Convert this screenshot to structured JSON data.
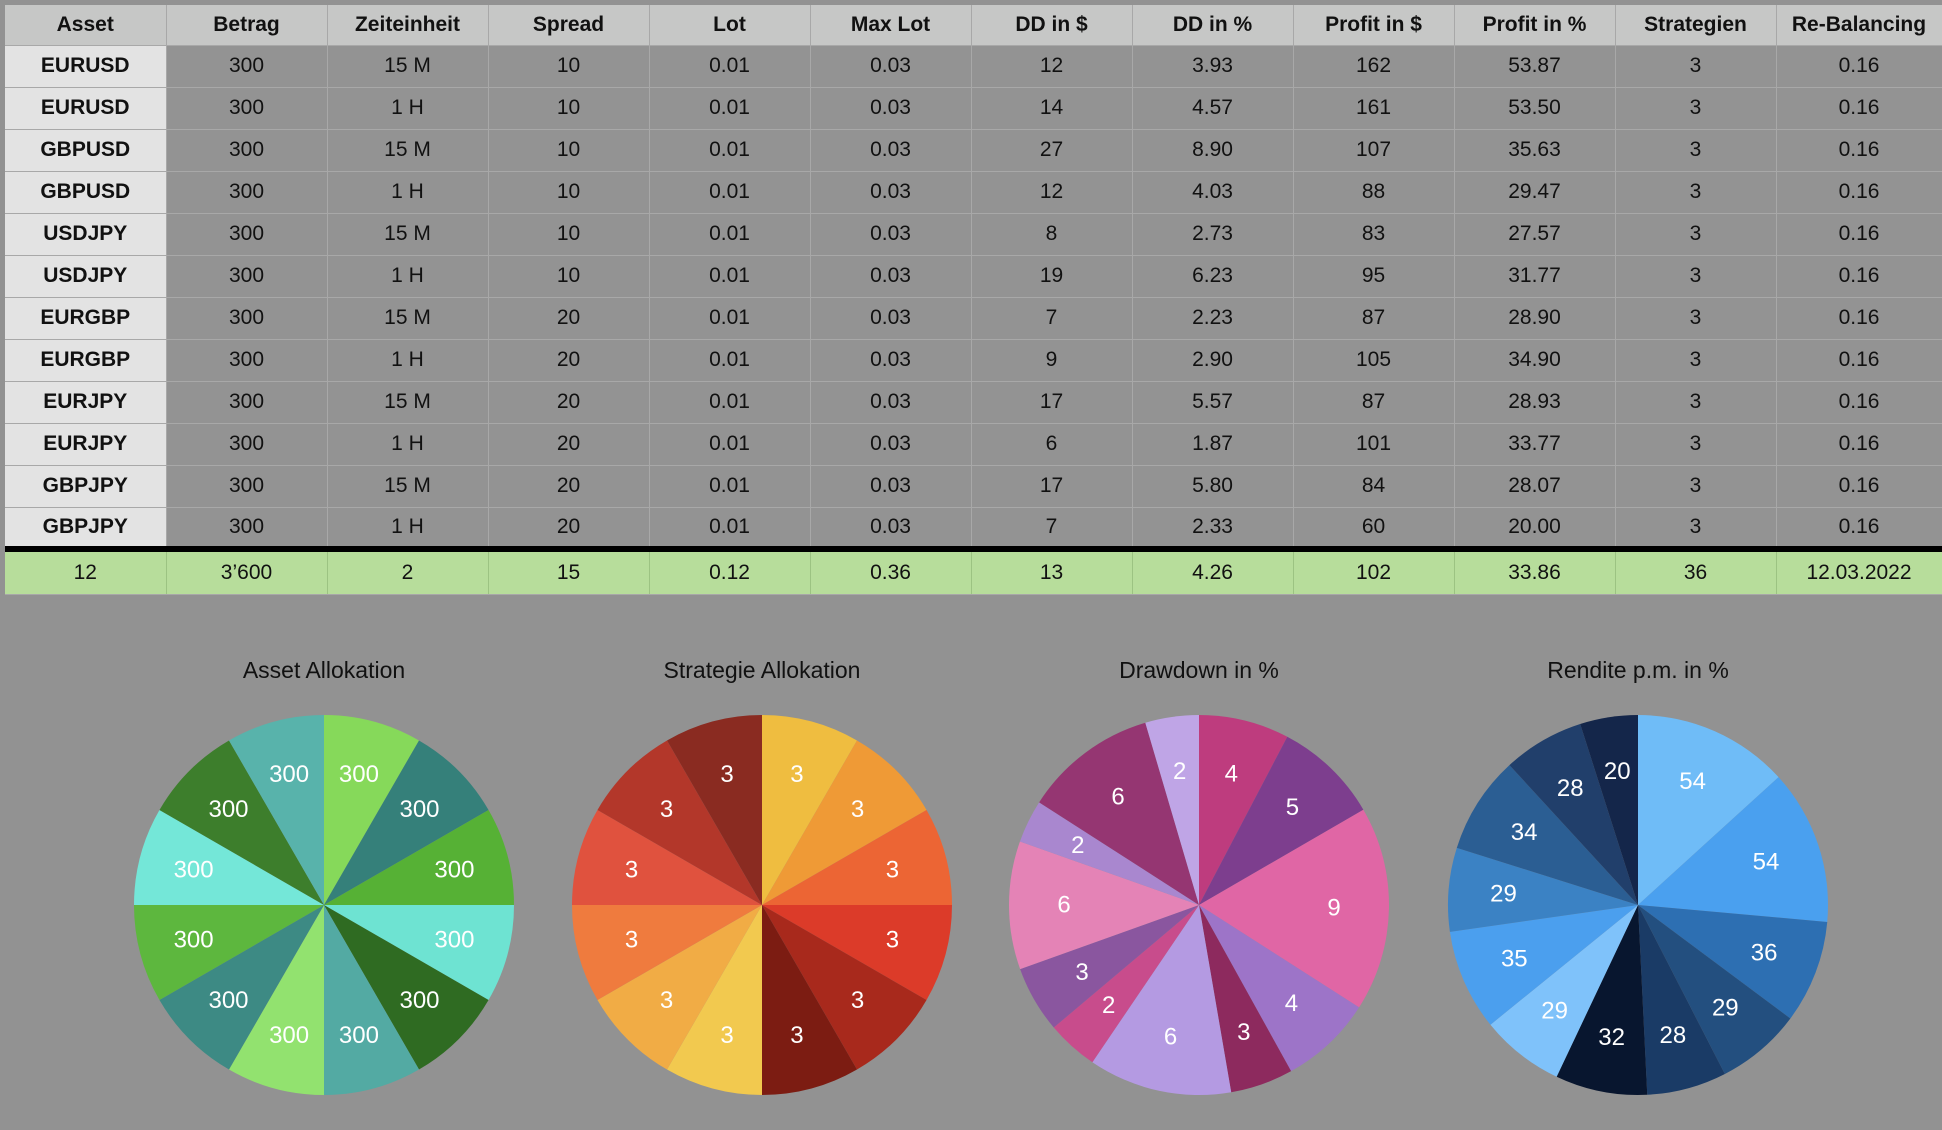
{
  "table": {
    "headers": [
      "Asset",
      "Betrag",
      "Zeiteinheit",
      "Spread",
      "Lot",
      "Max Lot",
      "DD in $",
      "DD in %",
      "Profit in $",
      "Profit in %",
      "Strategien",
      "Re-Balancing"
    ],
    "rows": [
      [
        "EURUSD",
        "300",
        "15 M",
        "10",
        "0.01",
        "0.03",
        "12",
        "3.93",
        "162",
        "53.87",
        "3",
        "0.16"
      ],
      [
        "EURUSD",
        "300",
        "1 H",
        "10",
        "0.01",
        "0.03",
        "14",
        "4.57",
        "161",
        "53.50",
        "3",
        "0.16"
      ],
      [
        "GBPUSD",
        "300",
        "15 M",
        "10",
        "0.01",
        "0.03",
        "27",
        "8.90",
        "107",
        "35.63",
        "3",
        "0.16"
      ],
      [
        "GBPUSD",
        "300",
        "1 H",
        "10",
        "0.01",
        "0.03",
        "12",
        "4.03",
        "88",
        "29.47",
        "3",
        "0.16"
      ],
      [
        "USDJPY",
        "300",
        "15 M",
        "10",
        "0.01",
        "0.03",
        "8",
        "2.73",
        "83",
        "27.57",
        "3",
        "0.16"
      ],
      [
        "USDJPY",
        "300",
        "1 H",
        "10",
        "0.01",
        "0.03",
        "19",
        "6.23",
        "95",
        "31.77",
        "3",
        "0.16"
      ],
      [
        "EURGBP",
        "300",
        "15 M",
        "20",
        "0.01",
        "0.03",
        "7",
        "2.23",
        "87",
        "28.90",
        "3",
        "0.16"
      ],
      [
        "EURGBP",
        "300",
        "1 H",
        "20",
        "0.01",
        "0.03",
        "9",
        "2.90",
        "105",
        "34.90",
        "3",
        "0.16"
      ],
      [
        "EURJPY",
        "300",
        "15 M",
        "20",
        "0.01",
        "0.03",
        "17",
        "5.57",
        "87",
        "28.93",
        "3",
        "0.16"
      ],
      [
        "EURJPY",
        "300",
        "1 H",
        "20",
        "0.01",
        "0.03",
        "6",
        "1.87",
        "101",
        "33.77",
        "3",
        "0.16"
      ],
      [
        "GBPJPY",
        "300",
        "15 M",
        "20",
        "0.01",
        "0.03",
        "17",
        "5.80",
        "84",
        "28.07",
        "3",
        "0.16"
      ],
      [
        "GBPJPY",
        "300",
        "1 H",
        "20",
        "0.01",
        "0.03",
        "7",
        "2.33",
        "60",
        "20.00",
        "3",
        "0.16"
      ]
    ],
    "totals": [
      "12",
      "3’600",
      "2",
      "15",
      "0.12",
      "0.36",
      "13",
      "4.26",
      "102",
      "33.86",
      "36",
      "12.03.2022"
    ]
  },
  "chart_data": [
    {
      "type": "pie",
      "title": "Asset Allokation",
      "values": [
        300,
        300,
        300,
        300,
        300,
        300,
        300,
        300,
        300,
        300,
        300,
        300
      ],
      "labels": [
        "300",
        "300",
        "300",
        "300",
        "300",
        "300",
        "300",
        "300",
        "300",
        "300",
        "300",
        "300"
      ],
      "colors": [
        "#86d95a",
        "#35807a",
        "#56b135",
        "#6ee3d2",
        "#2f6b22",
        "#53aaa3",
        "#92e26f",
        "#3d8a84",
        "#5db73e",
        "#74e7d8",
        "#3d7e2c",
        "#58b3ab"
      ]
    },
    {
      "type": "pie",
      "title": "Strategie Allokation",
      "values": [
        3,
        3,
        3,
        3,
        3,
        3,
        3,
        3,
        3,
        3,
        3,
        3
      ],
      "labels": [
        "3",
        "3",
        "3",
        "3",
        "3",
        "3",
        "3",
        "3",
        "3",
        "3",
        "3",
        "3"
      ],
      "colors": [
        "#efbd40",
        "#ef9a36",
        "#ec6534",
        "#dc3b29",
        "#a8291c",
        "#7c1c12",
        "#f2c94f",
        "#f1ac45",
        "#ef7b3e",
        "#e0523e",
        "#b3372a",
        "#8a2b21"
      ]
    },
    {
      "type": "pie",
      "title": "Drawdown in %",
      "values": [
        3.93,
        4.57,
        8.9,
        4.03,
        2.73,
        6.23,
        2.23,
        2.9,
        5.57,
        1.87,
        5.8,
        2.33
      ],
      "labels": [
        "4",
        "5",
        "9",
        "4",
        "3",
        "6",
        "2",
        "3",
        "6",
        "2",
        "6",
        "2"
      ],
      "colors": [
        "#be3c7e",
        "#7d3e8e",
        "#e066a5",
        "#9d74c8",
        "#8d2a5e",
        "#b49ae2",
        "#c84c8c",
        "#8a569f",
        "#e483b6",
        "#a987cf",
        "#953672",
        "#bfa5e6"
      ]
    },
    {
      "type": "pie",
      "title": "Rendite p.m. in %",
      "values": [
        53.87,
        53.5,
        35.63,
        29.47,
        27.57,
        31.77,
        28.9,
        34.9,
        28.93,
        33.77,
        28.07,
        20.0
      ],
      "labels": [
        "54",
        "54",
        "36",
        "29",
        "28",
        "32",
        "29",
        "35",
        "29",
        "34",
        "28",
        "20"
      ],
      "colors": [
        "#6fbcf7",
        "#4aa0ef",
        "#2d6fb2",
        "#234f7f",
        "#1a3b66",
        "#08162f",
        "#7fc2fa",
        "#4b9fee",
        "#3b82c4",
        "#2b5e93",
        "#213f6b",
        "#14264a"
      ]
    }
  ]
}
